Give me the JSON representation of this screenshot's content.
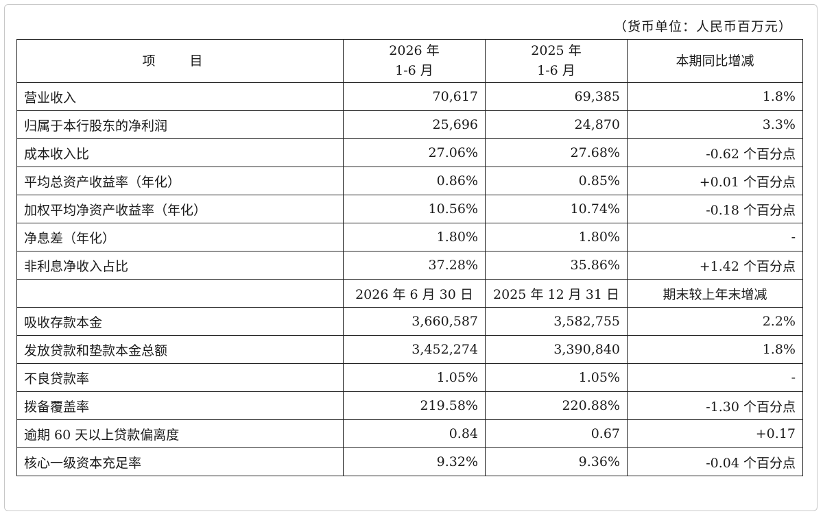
{
  "unit_note": "（货币单位：人民币百万元）",
  "header": {
    "item": "项 目",
    "col2_line1": "2026 年",
    "col2_line2": "1-6 月",
    "col3_line1": "2025 年",
    "col3_line2": "1-6 月",
    "col4": "本期同比增减"
  },
  "period_rows": [
    {
      "label": "营业收入",
      "v2026": "70,617",
      "v2025": "69,385",
      "change": "1.8%"
    },
    {
      "label": "归属于本行股东的净利润",
      "v2026": "25,696",
      "v2025": "24,870",
      "change": "3.3%"
    },
    {
      "label": "成本收入比",
      "v2026": "27.06%",
      "v2025": "27.68%",
      "change": "-0.62 个百分点"
    },
    {
      "label": "平均总资产收益率（年化）",
      "v2026": "0.86%",
      "v2025": "0.85%",
      "change": "+0.01 个百分点"
    },
    {
      "label": "加权平均净资产收益率（年化）",
      "v2026": "10.56%",
      "v2025": "10.74%",
      "change": "-0.18 个百分点"
    },
    {
      "label": "净息差（年化）",
      "v2026": "1.80%",
      "v2025": "1.80%",
      "change": "-"
    },
    {
      "label": "非利息净收入占比",
      "v2026": "37.28%",
      "v2025": "35.86%",
      "change": "+1.42 个百分点"
    }
  ],
  "subheader": {
    "item": "",
    "col2": "2026 年 6 月 30 日",
    "col3": "2025 年 12 月 31 日",
    "col4": "期末较上年末增减"
  },
  "balance_rows": [
    {
      "label": "吸收存款本金",
      "v2026": "3,660,587",
      "v2025": "3,582,755",
      "change": "2.2%"
    },
    {
      "label": "发放贷款和垫款本金总额",
      "v2026": "3,452,274",
      "v2025": "3,390,840",
      "change": "1.8%"
    },
    {
      "label": "不良贷款率",
      "v2026": "1.05%",
      "v2025": "1.05%",
      "change": "-"
    },
    {
      "label": "拨备覆盖率",
      "v2026": "219.58%",
      "v2025": "220.88%",
      "change": "-1.30 个百分点"
    },
    {
      "label": "逾期 60 天以上贷款偏离度",
      "v2026": "0.84",
      "v2025": "0.67",
      "change": "+0.17"
    },
    {
      "label": "核心一级资本充足率",
      "v2026": "9.32%",
      "v2025": "9.36%",
      "change": "-0.04 个百分点"
    }
  ]
}
